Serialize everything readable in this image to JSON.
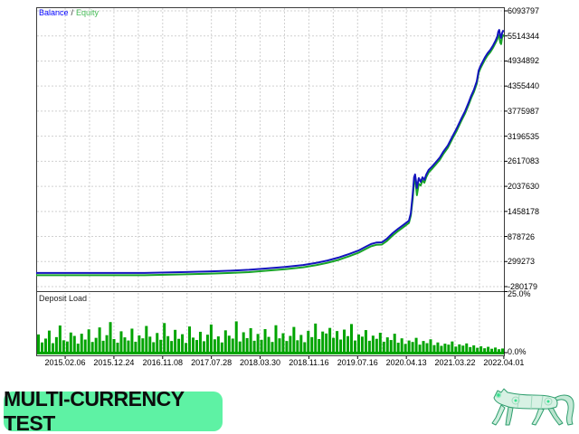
{
  "badge": {
    "label": "MULTI-CURRENCY TEST",
    "bg_color": "#5ef2a4",
    "text_color": "#0d0d0d"
  },
  "mascot": {
    "name": "green-robot-panther",
    "body_color": "#d8f1e4",
    "outline_color": "#2f9e6e",
    "accent_color": "#35e08c"
  },
  "chart": {
    "legend_separator": "/",
    "deposit_panel_title": "Deposit Load",
    "colors": {
      "balance_line": "#1414be",
      "equity_line": "#18a428",
      "legend_balance": "#0000ff",
      "legend_equity": "#44bb55",
      "deposit_bars": "#00a400",
      "grid": "#d0d0d0",
      "frame": "#3c3c3c"
    }
  },
  "chart_data": {
    "type": "line",
    "x_ticks": [
      "2015.02.06",
      "2015.12.24",
      "2016.11.08",
      "2017.07.28",
      "2018.03.30",
      "2018.11.16",
      "2019.07.16",
      "2020.04.13",
      "2021.03.22",
      "2022.04.01"
    ],
    "panels": [
      {
        "name": "balance-equity",
        "y_ticks": [
          "6093797",
          "5514344",
          "4934892",
          "4355440",
          "3775987",
          "3196535",
          "2617083",
          "2037630",
          "1458178",
          "878726",
          "299273",
          "-280179"
        ],
        "series": [
          {
            "name": "Balance",
            "color": "#1414be",
            "points": [
              [
                0.0,
                0.936
              ],
              [
                0.077,
                0.936
              ],
              [
                0.155,
                0.936
              ],
              [
                0.232,
                0.936
              ],
              [
                0.309,
                0.933
              ],
              [
                0.367,
                0.931
              ],
              [
                0.416,
                0.928
              ],
              [
                0.455,
                0.925
              ],
              [
                0.493,
                0.92
              ],
              [
                0.532,
                0.915
              ],
              [
                0.571,
                0.908
              ],
              [
                0.6,
                0.9
              ],
              [
                0.623,
                0.892
              ],
              [
                0.646,
                0.882
              ],
              [
                0.669,
                0.869
              ],
              [
                0.689,
                0.857
              ],
              [
                0.704,
                0.844
              ],
              [
                0.716,
                0.834
              ],
              [
                0.727,
                0.829
              ],
              [
                0.739,
                0.828
              ],
              [
                0.75,
                0.815
              ],
              [
                0.762,
                0.796
              ],
              [
                0.774,
                0.78
              ],
              [
                0.785,
                0.767
              ],
              [
                0.797,
                0.752
              ],
              [
                0.801,
                0.726
              ],
              [
                0.805,
                0.659
              ],
              [
                0.808,
                0.599
              ],
              [
                0.81,
                0.589
              ],
              [
                0.812,
                0.611
              ],
              [
                0.814,
                0.637
              ],
              [
                0.818,
                0.602
              ],
              [
                0.822,
                0.615
              ],
              [
                0.826,
                0.599
              ],
              [
                0.83,
                0.608
              ],
              [
                0.834,
                0.589
              ],
              [
                0.839,
                0.573
              ],
              [
                0.847,
                0.56
              ],
              [
                0.855,
                0.545
              ],
              [
                0.863,
                0.529
              ],
              [
                0.87,
                0.51
              ],
              [
                0.88,
                0.487
              ],
              [
                0.89,
                0.455
              ],
              [
                0.899,
                0.427
              ],
              [
                0.909,
                0.392
              ],
              [
                0.917,
                0.366
              ],
              [
                0.925,
                0.334
              ],
              [
                0.93,
                0.312
              ],
              [
                0.936,
                0.29
              ],
              [
                0.942,
                0.261
              ],
              [
                0.946,
                0.223
              ],
              [
                0.95,
                0.207
              ],
              [
                0.954,
                0.194
              ],
              [
                0.959,
                0.178
              ],
              [
                0.965,
                0.162
              ],
              [
                0.971,
                0.15
              ],
              [
                0.977,
                0.134
              ],
              [
                0.982,
                0.118
              ],
              [
                0.986,
                0.102
              ],
              [
                0.988,
                0.086
              ],
              [
                0.99,
                0.08
              ],
              [
                0.992,
                0.099
              ],
              [
                0.994,
                0.108
              ],
              [
                0.996,
                0.092
              ],
              [
                0.998,
                0.083
              ],
              [
                1.0,
                0.086
              ]
            ]
          },
          {
            "name": "Equity",
            "color": "#18a428",
            "points": [
              [
                0.0,
                0.944
              ],
              [
                0.077,
                0.944
              ],
              [
                0.155,
                0.944
              ],
              [
                0.232,
                0.944
              ],
              [
                0.309,
                0.941
              ],
              [
                0.367,
                0.939
              ],
              [
                0.416,
                0.936
              ],
              [
                0.455,
                0.933
              ],
              [
                0.493,
                0.928
              ],
              [
                0.532,
                0.923
              ],
              [
                0.571,
                0.916
              ],
              [
                0.6,
                0.908
              ],
              [
                0.623,
                0.9
              ],
              [
                0.646,
                0.89
              ],
              [
                0.669,
                0.877
              ],
              [
                0.689,
                0.865
              ],
              [
                0.704,
                0.852
              ],
              [
                0.716,
                0.842
              ],
              [
                0.727,
                0.837
              ],
              [
                0.739,
                0.836
              ],
              [
                0.75,
                0.823
              ],
              [
                0.762,
                0.804
              ],
              [
                0.774,
                0.788
              ],
              [
                0.785,
                0.775
              ],
              [
                0.797,
                0.76
              ],
              [
                0.801,
                0.734
              ],
              [
                0.805,
                0.675
              ],
              [
                0.808,
                0.615
              ],
              [
                0.81,
                0.6
              ],
              [
                0.812,
                0.63
              ],
              [
                0.814,
                0.662
              ],
              [
                0.818,
                0.622
              ],
              [
                0.822,
                0.628
              ],
              [
                0.826,
                0.61
              ],
              [
                0.83,
                0.618
              ],
              [
                0.834,
                0.598
              ],
              [
                0.839,
                0.582
              ],
              [
                0.847,
                0.568
              ],
              [
                0.855,
                0.553
              ],
              [
                0.863,
                0.537
              ],
              [
                0.87,
                0.518
              ],
              [
                0.88,
                0.495
              ],
              [
                0.89,
                0.463
              ],
              [
                0.899,
                0.435
              ],
              [
                0.909,
                0.4
              ],
              [
                0.917,
                0.374
              ],
              [
                0.925,
                0.342
              ],
              [
                0.93,
                0.32
              ],
              [
                0.936,
                0.298
              ],
              [
                0.942,
                0.269
              ],
              [
                0.946,
                0.231
              ],
              [
                0.95,
                0.215
              ],
              [
                0.954,
                0.202
              ],
              [
                0.959,
                0.186
              ],
              [
                0.965,
                0.17
              ],
              [
                0.971,
                0.158
              ],
              [
                0.977,
                0.142
              ],
              [
                0.982,
                0.126
              ],
              [
                0.986,
                0.112
              ],
              [
                0.988,
                0.098
              ],
              [
                0.99,
                0.1
              ],
              [
                0.992,
                0.124
              ],
              [
                0.994,
                0.13
              ],
              [
                0.996,
                0.108
              ],
              [
                0.998,
                0.098
              ],
              [
                1.0,
                0.103
              ]
            ]
          }
        ]
      },
      {
        "name": "deposit-load",
        "type": "bar",
        "y_max_label": "25.0%",
        "y_min_label": "0.0%",
        "y_max_value": 25.0,
        "bar_color": "#00a400",
        "values": [
          7.5,
          4.2,
          5.8,
          9.1,
          3.9,
          6.4,
          11.2,
          5.1,
          4.6,
          8.3,
          6.9,
          3.7,
          7.8,
          5.4,
          9.6,
          4.4,
          6.1,
          10.4,
          4.9,
          7.2,
          12.6,
          5.6,
          4.1,
          8.8,
          6.3,
          5.0,
          9.9,
          4.5,
          7.1,
          5.9,
          11.0,
          6.6,
          4.3,
          8.1,
          5.3,
          12.2,
          6.8,
          4.8,
          9.4,
          5.7,
          7.6,
          4.0,
          10.8,
          6.2,
          5.2,
          8.6,
          4.7,
          7.4,
          11.6,
          5.5,
          6.7,
          4.2,
          9.2,
          7.0,
          5.8,
          12.9,
          4.6,
          8.4,
          6.0,
          10.1,
          4.9,
          7.7,
          5.3,
          9.7,
          6.5,
          4.4,
          11.3,
          5.9,
          8.0,
          4.8,
          6.9,
          10.6,
          5.1,
          7.3,
          4.3,
          9.0,
          6.4,
          12.0,
          5.6,
          8.7,
          7.9,
          10.2,
          6.1,
          8.9,
          5.4,
          9.5,
          6.8,
          11.8,
          5.0,
          7.5,
          6.6,
          9.3,
          4.9,
          7.0,
          5.7,
          8.2,
          4.5,
          6.3,
          5.2,
          7.8,
          4.1,
          5.9,
          3.6,
          5.0,
          4.4,
          6.1,
          3.3,
          4.8,
          3.9,
          5.5,
          3.1,
          4.2,
          2.8,
          3.7,
          3.3,
          4.6,
          2.5,
          3.4,
          2.9,
          3.8,
          2.3,
          3.0,
          2.0,
          2.6,
          1.8,
          2.4,
          1.6,
          2.1,
          1.4,
          1.7
        ]
      }
    ]
  }
}
